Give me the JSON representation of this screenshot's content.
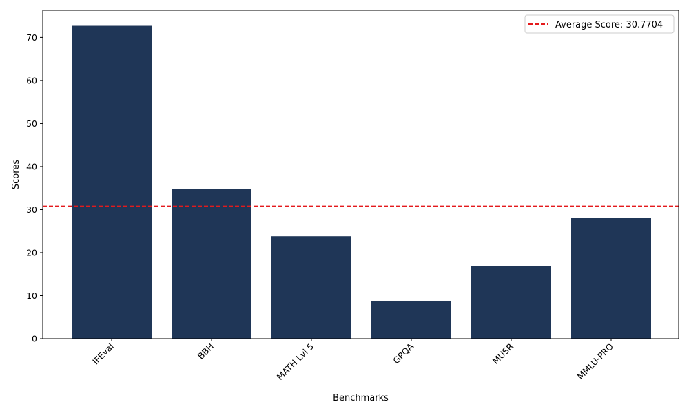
{
  "chart_data": {
    "type": "bar",
    "title": "",
    "xlabel": "Benchmarks",
    "ylabel": "Scores",
    "categories": [
      "IFEval",
      "BBH",
      "MATH Lvl 5",
      "GPQA",
      "MUSR",
      "MMLU-PRO"
    ],
    "values": [
      72.7,
      34.8,
      23.8,
      8.8,
      16.8,
      28.0
    ],
    "ylim": [
      0,
      76.3
    ],
    "yticks": [
      0,
      10,
      20,
      30,
      40,
      50,
      60,
      70
    ],
    "bar_color": "#1f3657",
    "grid": false,
    "average_line": {
      "value": 30.7704,
      "color": "#e41a1c",
      "style": "dashed",
      "label": "Average Score: 30.7704"
    },
    "legend": {
      "position": "top-right",
      "entries": [
        "Average Score: 30.7704"
      ]
    },
    "xtick_rotation": 45
  }
}
